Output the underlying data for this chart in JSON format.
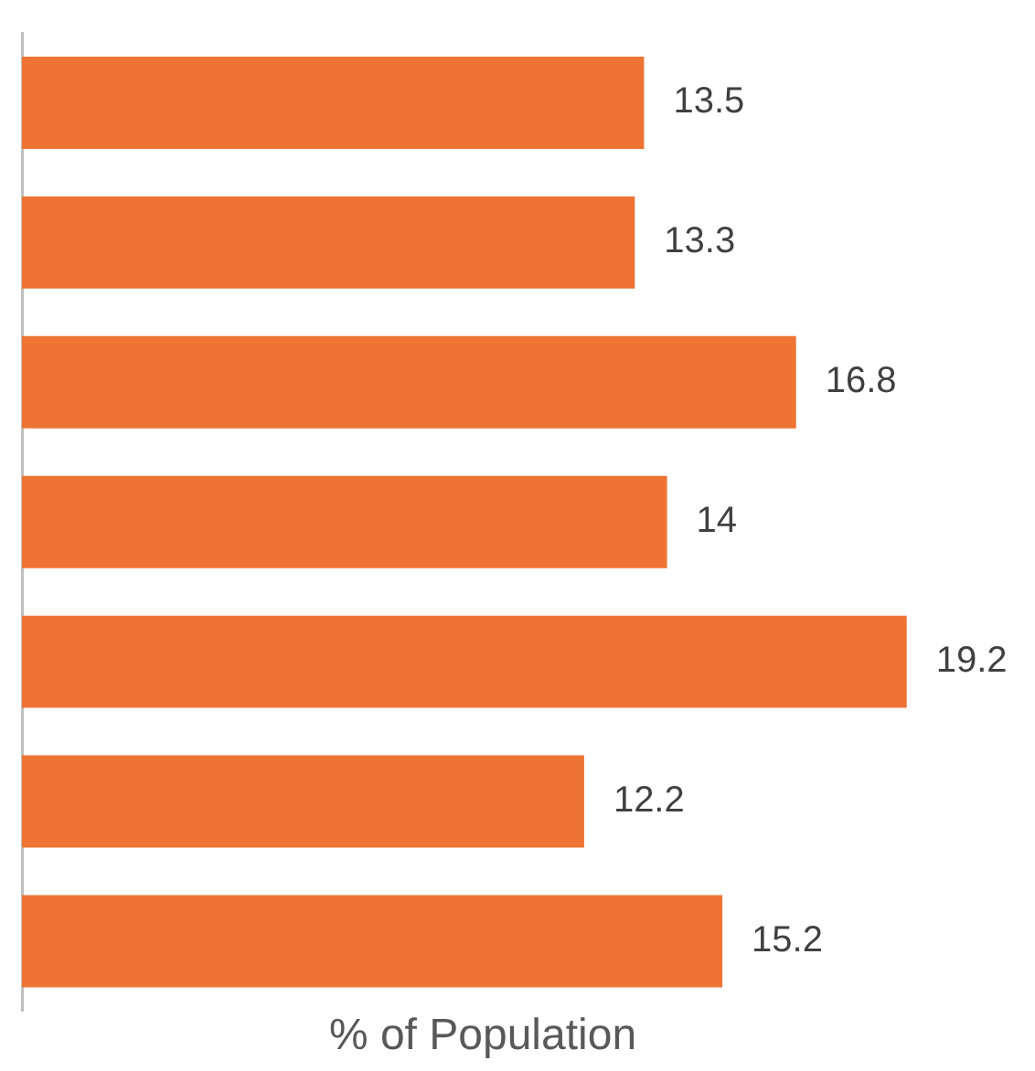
{
  "chart_data": {
    "type": "bar",
    "orientation": "horizontal",
    "xlabel": "% of Population",
    "categories": [
      null,
      null,
      null,
      null,
      null,
      null,
      null
    ],
    "values": [
      13.5,
      13.3,
      16.8,
      14,
      19.2,
      12.2,
      15.2
    ],
    "color": "#ed7432",
    "data_labels": true,
    "tick_labels": false,
    "grid": false,
    "legend": false
  }
}
